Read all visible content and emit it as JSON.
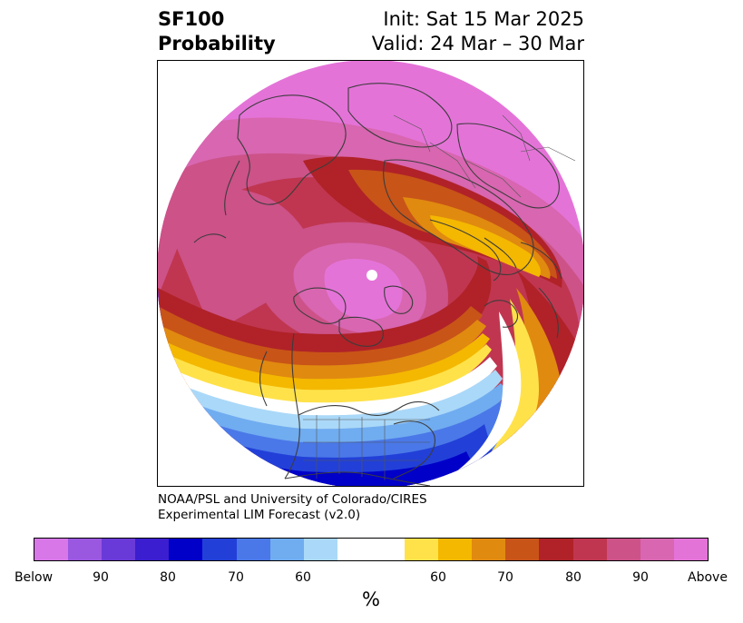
{
  "title": {
    "left_line1": "SF100",
    "left_line2": "Probability",
    "right_line1": "Init: Sat 15 Mar 2025",
    "right_line2": "Valid: 24 Mar – 30 Mar"
  },
  "credit": {
    "line1": "NOAA/PSL and University of Colorado/CIRES",
    "line2": "Experimental LIM Forecast (v2.0)"
  },
  "colorbar": {
    "unit": "%",
    "tick_labels": [
      "Below",
      "90",
      "80",
      "70",
      "60",
      "60",
      "70",
      "80",
      "90",
      "Above"
    ],
    "colors": [
      "#d877e8",
      "#9a57e0",
      "#6a3ad8",
      "#3a1ed0",
      "#0000c8",
      "#2240d8",
      "#4a78e8",
      "#70acf0",
      "#aad8f8",
      "#ffffff",
      "#ffe24a",
      "#f4b800",
      "#e08a10",
      "#c85418",
      "#b02228",
      "#c03650",
      "#cc5288",
      "#d866b0",
      "#e473d8"
    ]
  },
  "legend": {
    "below": "Below",
    "above": "Above"
  }
}
